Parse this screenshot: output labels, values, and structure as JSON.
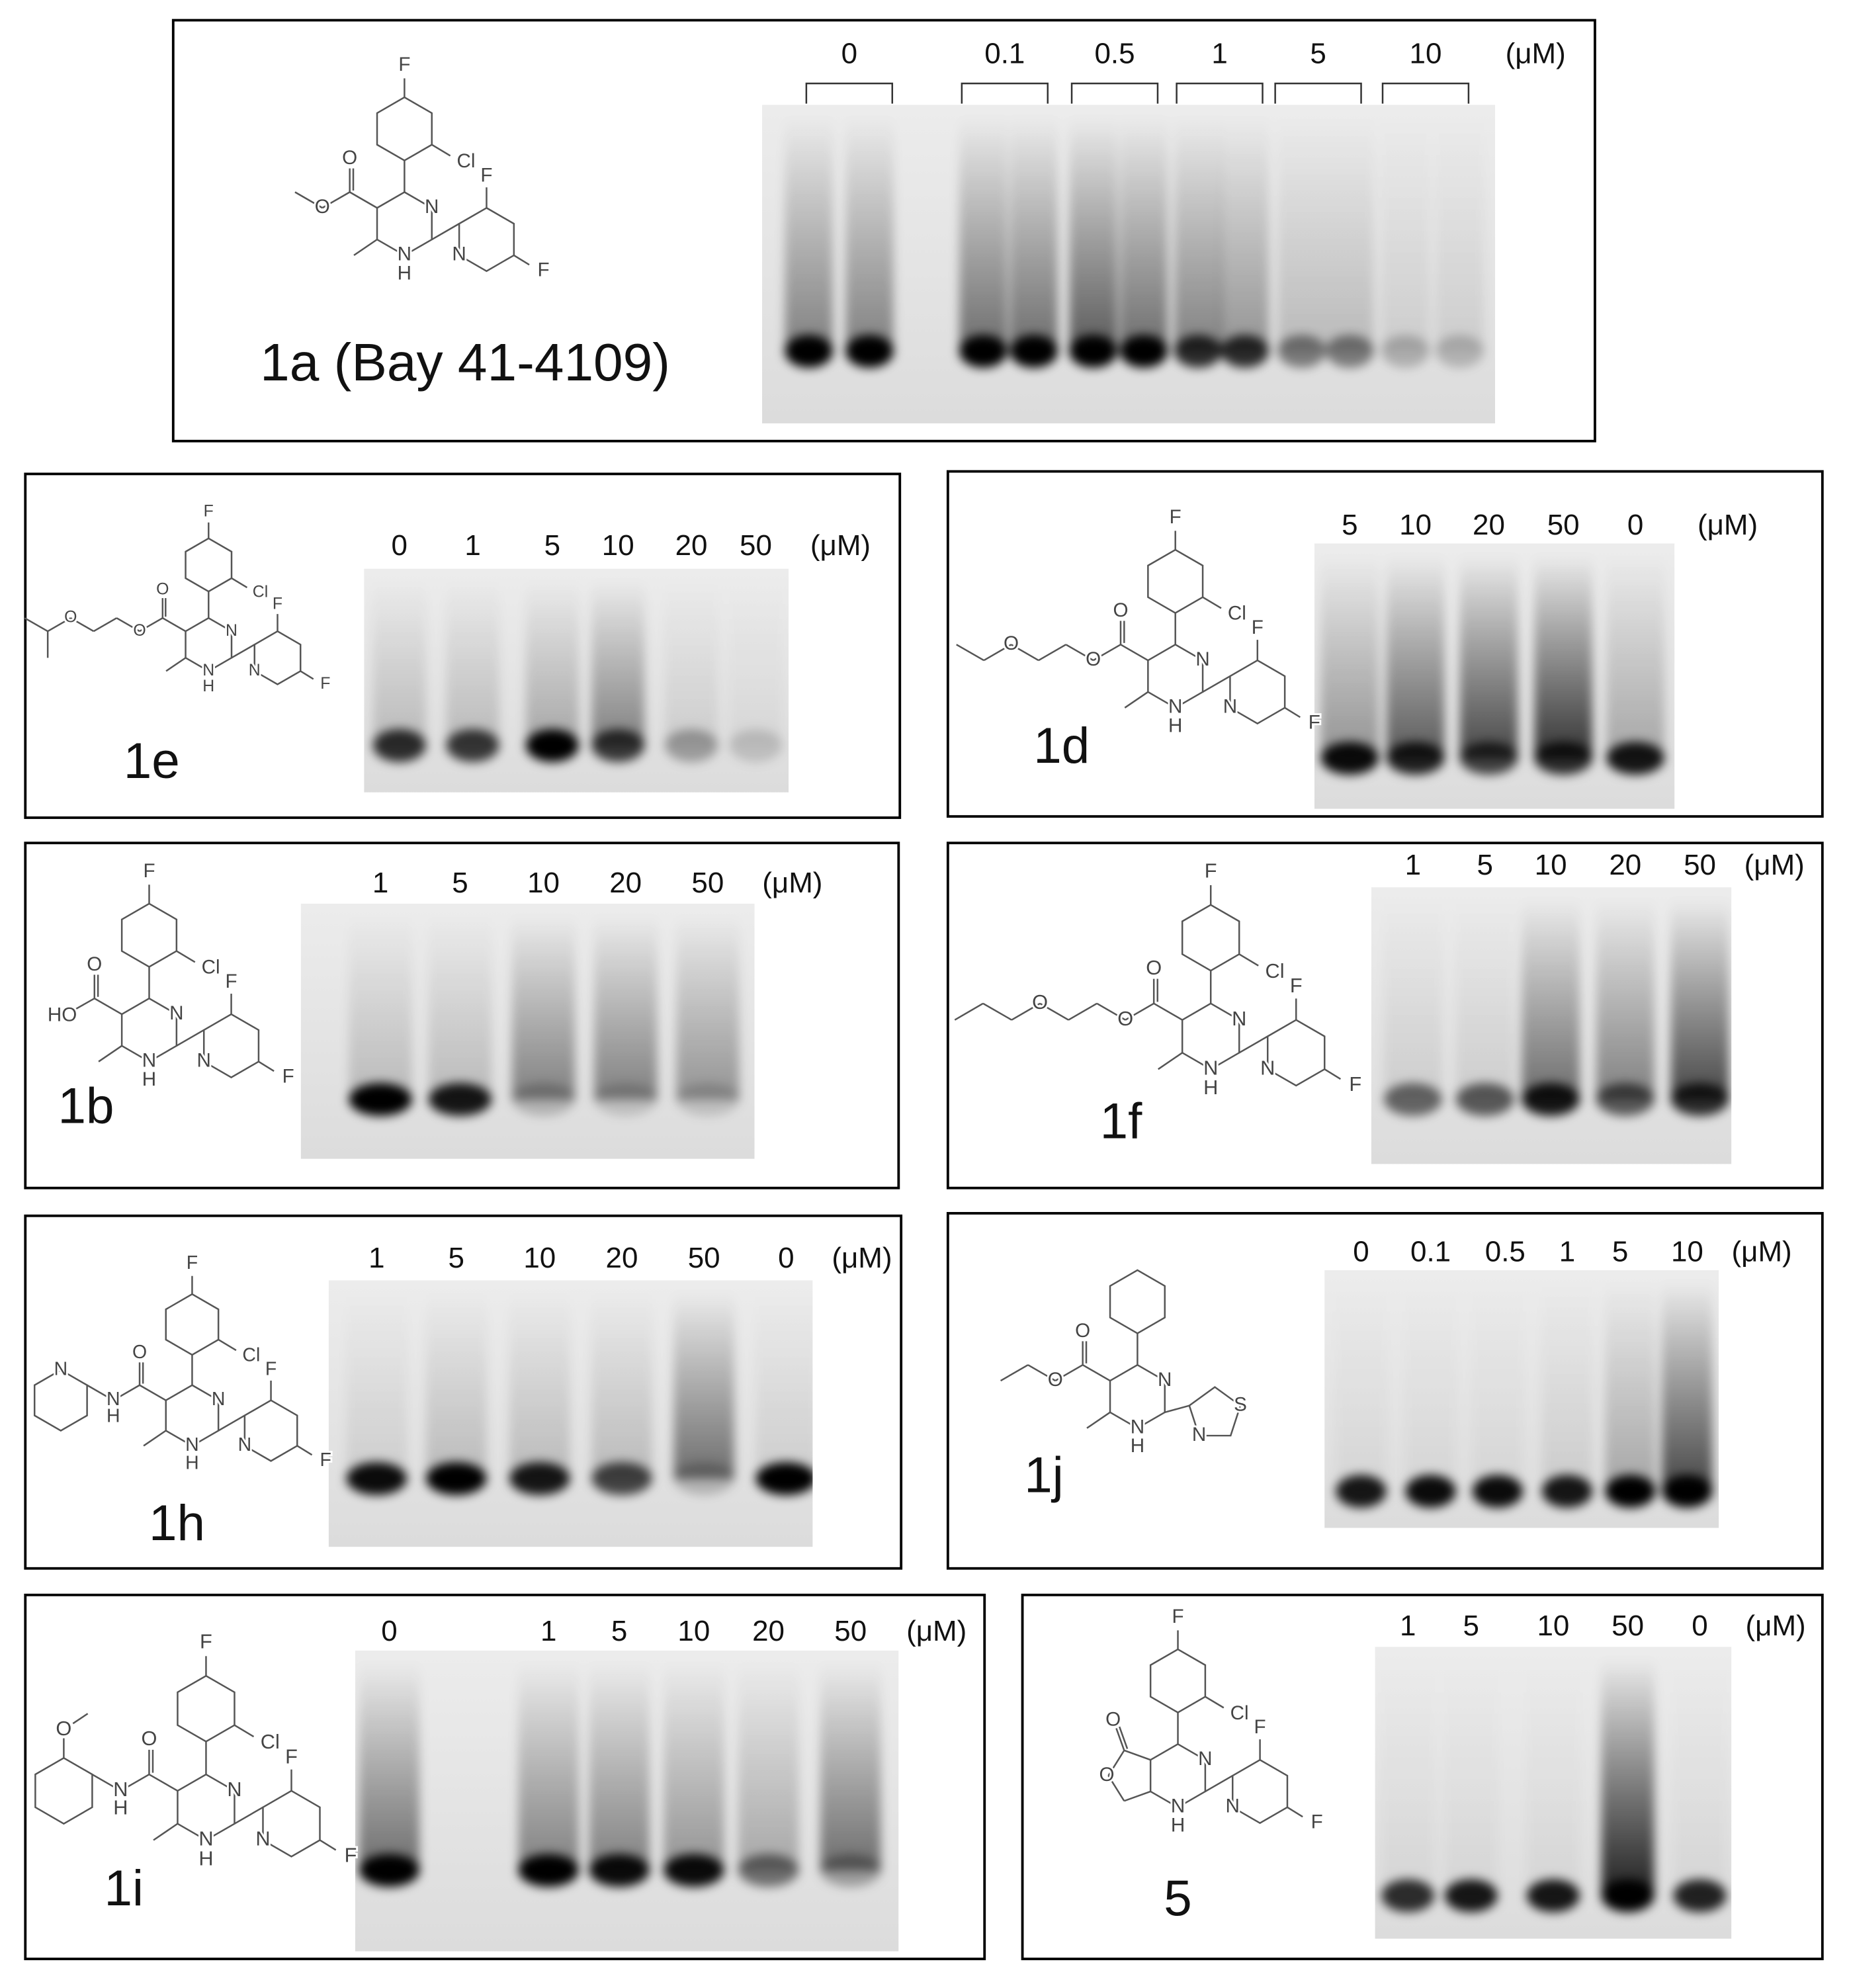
{
  "panels": [
    {
      "label": "1a (Bay 41-4109)",
      "concentrations": [
        "0",
        "0.1",
        "0.5",
        "1",
        "5",
        "10"
      ],
      "unit": "(μM)",
      "structure_atoms": [
        "F",
        "Cl",
        "N",
        "N",
        "H",
        "F",
        "N",
        "F",
        "O",
        "O"
      ]
    },
    {
      "label": "1e",
      "concentrations": [
        "0",
        "1",
        "5",
        "10",
        "20",
        "50"
      ],
      "unit": "(μM)",
      "structure_atoms": [
        "F",
        "Cl",
        "N",
        "N",
        "H",
        "F",
        "N",
        "F",
        "O",
        "O",
        "O"
      ]
    },
    {
      "label": "1d",
      "concentrations": [
        "5",
        "10",
        "20",
        "50",
        "0"
      ],
      "unit": "(μM)",
      "structure_atoms": [
        "F",
        "Cl",
        "N",
        "N",
        "H",
        "F",
        "N",
        "F",
        "O",
        "O",
        "O"
      ]
    },
    {
      "label": "1b",
      "concentrations": [
        "1",
        "5",
        "10",
        "20",
        "50"
      ],
      "unit": "(μM)",
      "structure_atoms": [
        "F",
        "Cl",
        "N",
        "N",
        "H",
        "F",
        "N",
        "F",
        "O",
        "HO"
      ]
    },
    {
      "label": "1f",
      "concentrations": [
        "1",
        "5",
        "10",
        "20",
        "50"
      ],
      "unit": "(μM)",
      "structure_atoms": [
        "F",
        "Cl",
        "N",
        "N",
        "H",
        "F",
        "N",
        "F",
        "O",
        "O",
        "O"
      ]
    },
    {
      "label": "1h",
      "concentrations": [
        "1",
        "5",
        "10",
        "20",
        "50",
        "0"
      ],
      "unit": "(μM)",
      "structure_atoms": [
        "F",
        "Cl",
        "N",
        "N",
        "H",
        "F",
        "N",
        "F",
        "O",
        "N",
        "H",
        "N"
      ]
    },
    {
      "label": "1j",
      "concentrations": [
        "0",
        "0.1",
        "0.5",
        "1",
        "5",
        "10"
      ],
      "unit": "(μM)",
      "structure_atoms": [
        "N",
        "N",
        "H",
        "S",
        "N",
        "O",
        "O"
      ]
    },
    {
      "label": "1i",
      "concentrations": [
        "0",
        "1",
        "5",
        "10",
        "20",
        "50"
      ],
      "unit": "(μM)",
      "structure_atoms": [
        "F",
        "Cl",
        "N",
        "N",
        "H",
        "F",
        "N",
        "F",
        "O",
        "N",
        "H",
        "O"
      ]
    },
    {
      "label": "5",
      "concentrations": [
        "1",
        "5",
        "10",
        "50",
        "0"
      ],
      "unit": "(μM)",
      "structure_atoms": [
        "F",
        "Cl",
        "N",
        "N",
        "H",
        "F",
        "N",
        "F",
        "O",
        "O"
      ]
    }
  ]
}
